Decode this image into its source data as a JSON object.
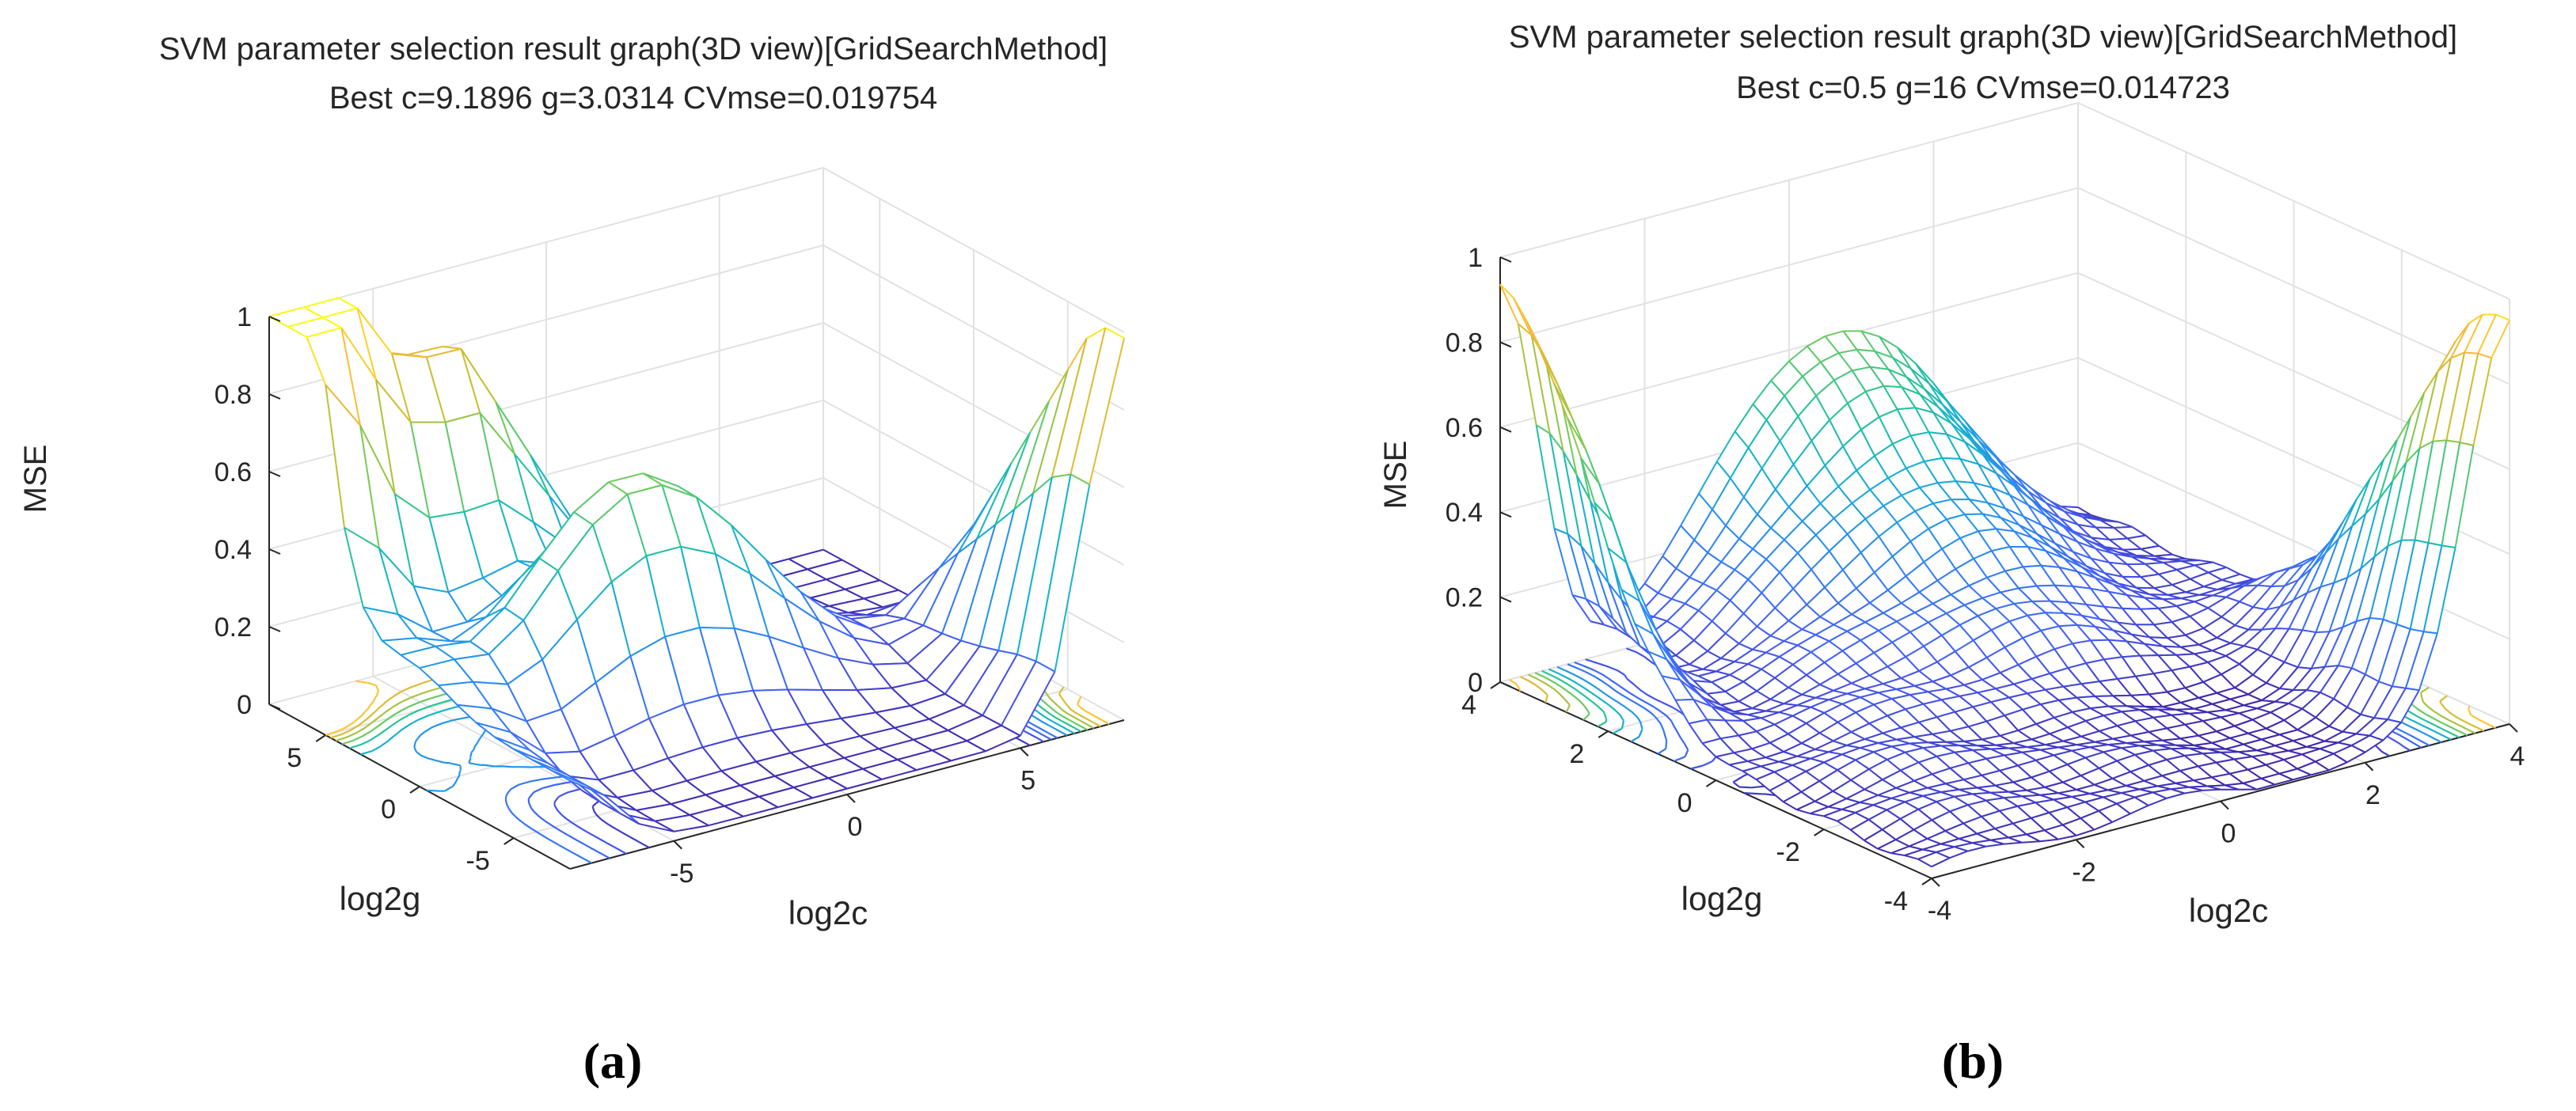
{
  "figure": {
    "panel_labels": [
      "(a)",
      "(b)"
    ]
  },
  "chart_data": [
    {
      "type": "surface3d",
      "panel": "(a)",
      "title": "SVM parameter selection result graph(3D view)[GridSearchMethod]",
      "subtitle": "Best c=9.1896 g=3.0314 CVmse=0.019754",
      "xlabel": "log2c",
      "ylabel": "log2g",
      "zlabel": "MSE",
      "xlim": [
        -8,
        8
      ],
      "ylim": [
        -8,
        8
      ],
      "zlim": [
        0,
        1
      ],
      "xticks": [
        "-5",
        "0",
        "5"
      ],
      "xtick_values": [
        -5,
        0,
        5
      ],
      "yticks": [
        "-5",
        "0",
        "5"
      ],
      "ytick_values": [
        -5,
        0,
        5
      ],
      "zticks": [
        "0",
        "0.2",
        "0.4",
        "0.6",
        "0.8",
        "1"
      ],
      "ztick_values": [
        0,
        0.2,
        0.4,
        0.6,
        0.8,
        1
      ],
      "grid_step": 1,
      "best_point": {
        "log2c": 3.2,
        "log2g": 1.6,
        "mse": 0.019754
      },
      "contour_levels": [
        0.05,
        0.1,
        0.15,
        0.2,
        0.3,
        0.4,
        0.5,
        0.6,
        0.7,
        0.8,
        0.9
      ]
    },
    {
      "type": "surface3d",
      "panel": "(b)",
      "title": "SVM parameter selection result graph(3D view)[GridSearchMethod]",
      "subtitle": "Best c=0.5 g=16 CVmse=0.014723",
      "xlabel": "log2c",
      "ylabel": "log2g",
      "zlabel": "MSE",
      "xlim": [
        -4,
        4
      ],
      "ylim": [
        -4,
        4
      ],
      "zlim": [
        0,
        1
      ],
      "xticks": [
        "-4",
        "-2",
        "0",
        "2",
        "4"
      ],
      "xtick_values": [
        -4,
        -2,
        0,
        2,
        4
      ],
      "yticks": [
        "-4",
        "-2",
        "0",
        "2",
        "4"
      ],
      "ytick_values": [
        -4,
        -2,
        0,
        2,
        4
      ],
      "zticks": [
        "0",
        "0.2",
        "0.4",
        "0.6",
        "0.8",
        "1"
      ],
      "ztick_values": [
        0,
        0.2,
        0.4,
        0.6,
        0.8,
        1
      ],
      "grid_step": 0.25,
      "best_point": {
        "log2c": -1,
        "log2g": 4,
        "mse": 0.014723
      },
      "contour_levels": [
        0.05,
        0.1,
        0.15,
        0.2,
        0.3,
        0.4,
        0.5,
        0.6,
        0.7,
        0.8,
        0.9
      ]
    }
  ]
}
